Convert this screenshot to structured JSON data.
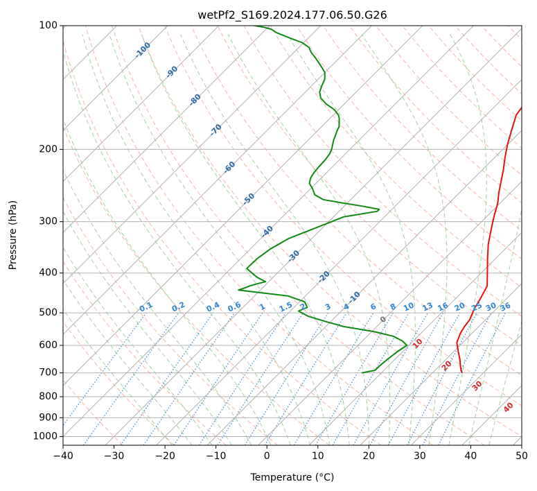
{
  "chart_data": {
    "type": "line",
    "chart_kind": "skew-t log-p",
    "title": "wetPf2_S169.2024.177.06.50.G26",
    "xlabel": "Temperature (°C)",
    "ylabel": "Pressure (hPa)",
    "xlim": [
      -40,
      50
    ],
    "ylim": [
      1050,
      100
    ],
    "y_scale": "log",
    "grid": true,
    "x_ticks": [
      "−40",
      "−30",
      "−20",
      "−10",
      "0",
      "10",
      "20",
      "30",
      "40",
      "50"
    ],
    "y_ticks": [
      "100",
      "200",
      "300",
      "400",
      "500",
      "600",
      "700",
      "800",
      "900",
      "1000"
    ],
    "colors": {
      "temperature": "#e8100b",
      "dewpoint": "#0f8a10",
      "isotherm_grid": "#b0b0b0",
      "dry_adiabat": "#f7b39c",
      "moist_adiabat": "#8cc98c",
      "mixing_ratio": "#2f86d6",
      "isotherm_label": "#2a6aa6",
      "moist_label": "#d62a2a"
    },
    "series": [
      {
        "role": "temperature",
        "x": [
          25.8,
          24.5,
          22.8,
          20.8,
          18.8,
          17.7,
          17.2,
          16.9,
          15.7,
          14.8,
          13.7,
          11.2,
          8.5,
          5.7,
          3.1,
          1.3,
          -0.5,
          -2.3,
          -4.0,
          -5.8,
          -7.9,
          -10.0,
          -12.0,
          -14.1,
          -15.0,
          -16.3,
          -17.4,
          -18.5,
          -19.1,
          -20.1
        ],
        "y": [
          700,
          680,
          650,
          620,
          590,
          560,
          540,
          520,
          490,
          460,
          430,
          400,
          370,
          340,
          310,
          290,
          270,
          255,
          240,
          225,
          210,
          195,
          180,
          165,
          150,
          135,
          125,
          115,
          108,
          100
        ]
      },
      {
        "role": "dewpoint",
        "x": [
          6.1,
          8.2,
          8.3,
          8.5,
          9.0,
          9.6,
          7.8,
          5.1,
          0.3,
          -6.5,
          -11.0,
          -15.4,
          -18.4,
          -17.4,
          -19.0,
          -23.4,
          -34.3,
          -33.5,
          -32.9,
          -31.9,
          -30.6,
          -33.1,
          -36.9,
          -36.8,
          -36.1,
          -34.6,
          -31.2,
          -28.0,
          -22.5,
          -22.5,
          -26.4,
          -31.0,
          -35.4,
          -38.0,
          -39.5,
          -41.3,
          -42.1,
          -42.5,
          -42.7,
          -42.8,
          -43.1,
          -43.6,
          -44.3,
          -45.0,
          -45.6,
          -46.2,
          -46.6,
          -47.4,
          -48.2,
          -49.0,
          -50.9,
          -53.6,
          -55.8,
          -57.2,
          -58.0,
          -58.7,
          -60.0,
          -62.2,
          -64.6,
          -66.7,
          -68.0,
          -70.3,
          -73.8,
          -77.3,
          -79.0,
          -80.6,
          -82.9,
          -84.8,
          -86.2,
          -87.5,
          -88.7
        ],
        "y": [
          700,
          690,
          670,
          650,
          620,
          600,
          585,
          570,
          555,
          540,
          525,
          510,
          495,
          485,
          470,
          455,
          440,
          435,
          430,
          425,
          420,
          410,
          390,
          370,
          350,
          330,
          310,
          292,
          283,
          280,
          275,
          270,
          265,
          258,
          250,
          242,
          235,
          228,
          220,
          212,
          205,
          200,
          195,
          190,
          185,
          180,
          176,
          172,
          168,
          165,
          160,
          155,
          150,
          145,
          140,
          135,
          130,
          125,
          120,
          116,
          113,
          110,
          107,
          104,
          102,
          101,
          100,
          99,
          98,
          97,
          96
        ]
      }
    ],
    "isotherm_labels": [
      "-100",
      "-90",
      "-80",
      "-70",
      "-60",
      "-50",
      "-40",
      "-30",
      "-20",
      "-10",
      "0"
    ],
    "isotherm_label_values": [
      -100,
      -90,
      -80,
      -70,
      -60,
      -50,
      -40,
      -30,
      -20,
      -10,
      0
    ],
    "mixing_ratio_labels": [
      "0.1",
      "0.2",
      "0.4",
      "0.6",
      "1",
      "1.5",
      "2",
      "3",
      "4",
      "6",
      "8",
      "10",
      "13",
      "16",
      "20",
      "25",
      "30",
      "36"
    ],
    "mixing_ratio_values": [
      0.1,
      0.2,
      0.4,
      0.6,
      1,
      1.5,
      2,
      3,
      4,
      6,
      8,
      10,
      13,
      16,
      20,
      25,
      30,
      36
    ],
    "moist_adiabat_labels": [
      "10",
      "20",
      "30",
      "40"
    ],
    "moist_adiabat_values": [
      10,
      20,
      30,
      40
    ]
  }
}
